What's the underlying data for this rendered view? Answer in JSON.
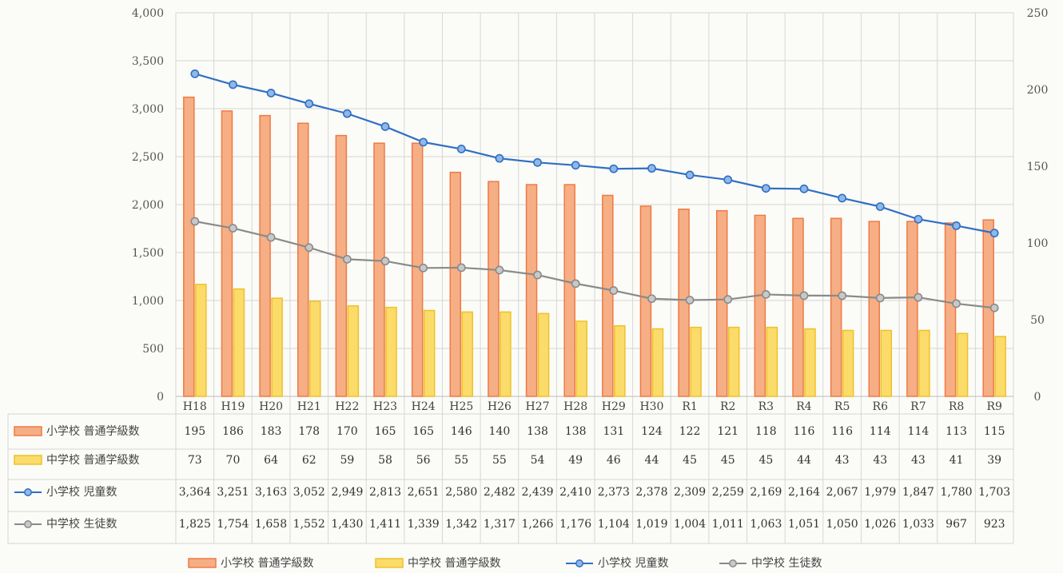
{
  "chart_data": {
    "type": "bar",
    "categories": [
      "H18",
      "H19",
      "H20",
      "H21",
      "H22",
      "H23",
      "H24",
      "H25",
      "H26",
      "H27",
      "H28",
      "H29",
      "H30",
      "R1",
      "R2",
      "R3",
      "R4",
      "R5",
      "R6",
      "R7",
      "R8",
      "R9"
    ],
    "y_left": {
      "ticks": [
        "0",
        "500",
        "1,000",
        "1,500",
        "2,000",
        "2,500",
        "3,000",
        "3,500",
        "4,000"
      ],
      "ylim": [
        0,
        4000
      ]
    },
    "y_right": {
      "ticks": [
        "0",
        "50",
        "100",
        "150",
        "200",
        "250"
      ],
      "ylim": [
        0,
        250
      ]
    },
    "grid": true,
    "legend_position": "bottom",
    "series": [
      {
        "name": "小学校 普通学級数",
        "kind": "bar",
        "axis": "right",
        "color": "#ef7a45",
        "fill": "#f6ae85",
        "values": [
          195,
          186,
          183,
          178,
          170,
          165,
          165,
          146,
          140,
          138,
          138,
          131,
          124,
          122,
          121,
          118,
          116,
          116,
          114,
          114,
          113,
          115
        ],
        "labels": [
          "195",
          "186",
          "183",
          "178",
          "170",
          "165",
          "165",
          "146",
          "140",
          "138",
          "138",
          "131",
          "124",
          "122",
          "121",
          "118",
          "116",
          "116",
          "114",
          "114",
          "113",
          "115"
        ]
      },
      {
        "name": "中学校 普通学級数",
        "kind": "bar",
        "axis": "right",
        "color": "#eec22a",
        "fill": "#fbdb6a",
        "values": [
          73,
          70,
          64,
          62,
          59,
          58,
          56,
          55,
          55,
          54,
          49,
          46,
          44,
          45,
          45,
          45,
          44,
          43,
          43,
          43,
          41,
          39
        ],
        "labels": [
          "73",
          "70",
          "64",
          "62",
          "59",
          "58",
          "56",
          "55",
          "55",
          "54",
          "49",
          "46",
          "44",
          "45",
          "45",
          "45",
          "44",
          "43",
          "43",
          "43",
          "41",
          "39"
        ]
      },
      {
        "name": "小学校 児童数",
        "kind": "line",
        "axis": "left",
        "color": "#2f6fc4",
        "fill": "#8fb8e8",
        "values": [
          3364,
          3251,
          3163,
          3052,
          2949,
          2813,
          2651,
          2580,
          2482,
          2439,
          2410,
          2373,
          2378,
          2309,
          2259,
          2169,
          2164,
          2067,
          1979,
          1847,
          1780,
          1703
        ],
        "labels": [
          "3,364",
          "3,251",
          "3,163",
          "3,052",
          "2,949",
          "2,813",
          "2,651",
          "2,580",
          "2,482",
          "2,439",
          "2,410",
          "2,373",
          "2,378",
          "2,309",
          "2,259",
          "2,169",
          "2,164",
          "2,067",
          "1,979",
          "1,847",
          "1,780",
          "1,703"
        ]
      },
      {
        "name": "中学校 生徒数",
        "kind": "line",
        "axis": "left",
        "color": "#8a8a8a",
        "fill": "#c8c8c8",
        "values": [
          1825,
          1754,
          1658,
          1552,
          1430,
          1411,
          1339,
          1342,
          1317,
          1266,
          1176,
          1104,
          1019,
          1004,
          1011,
          1063,
          1051,
          1050,
          1026,
          1033,
          967,
          923
        ],
        "labels": [
          "1,825",
          "1,754",
          "1,658",
          "1,552",
          "1,430",
          "1,411",
          "1,339",
          "1,342",
          "1,317",
          "1,266",
          "1,176",
          "1,104",
          "1,019",
          "1,004",
          "1,011",
          "1,063",
          "1,051",
          "1,050",
          "1,026",
          "1,033",
          "967",
          "923"
        ]
      }
    ]
  }
}
